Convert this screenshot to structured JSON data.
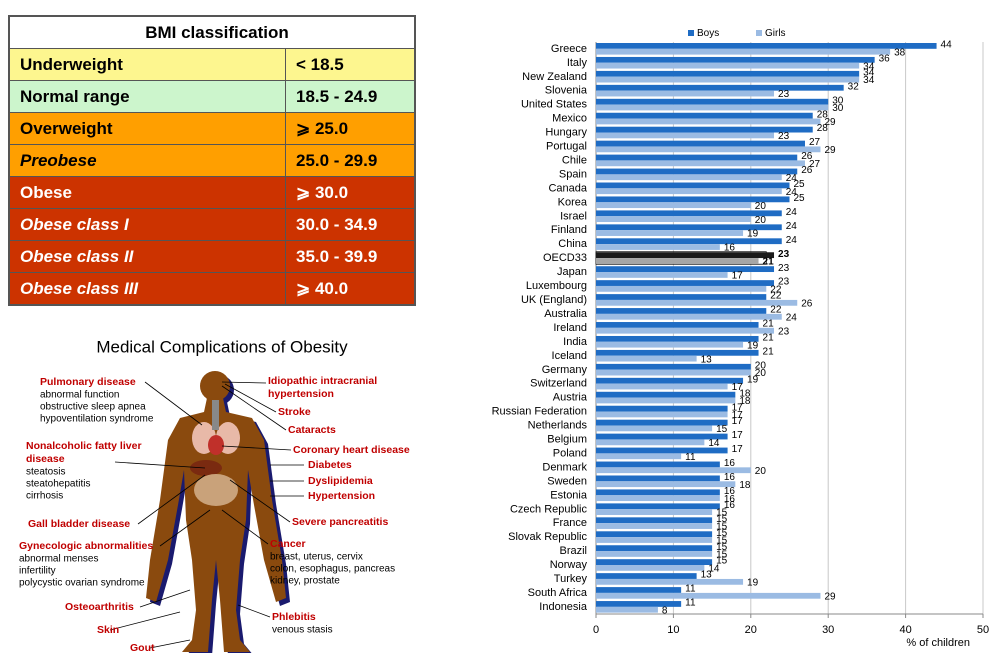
{
  "bmi_table": {
    "title": "BMI classification",
    "rows": [
      [
        "Underweight",
        "< 18.5"
      ],
      [
        "Normal range",
        "18.5 - 24.9"
      ],
      [
        "Overweight",
        "⩾ 25.0"
      ],
      [
        "Preobese",
        "25.0 - 29.9"
      ],
      [
        "Obese",
        "⩾ 30.0"
      ],
      [
        "Obese class I",
        "30.0 - 34.9"
      ],
      [
        "Obese class II",
        "35.0 - 39.9"
      ],
      [
        "Obese class III",
        "⩾ 40.0"
      ]
    ]
  },
  "complications": {
    "title": "Medical Complications of Obesity",
    "items": [
      {
        "label": [
          "Pulmonary disease"
        ],
        "details": [
          "abnormal function",
          "obstructive sleep apnea",
          "hypoventilation syndrome"
        ]
      },
      {
        "label": [
          "Nonalcoholic fatty liver",
          "disease"
        ],
        "details": [
          "steatosis",
          "steatohepatitis",
          "cirrhosis"
        ]
      },
      {
        "label": [
          "Gall bladder disease"
        ],
        "details": []
      },
      {
        "label": [
          "Gynecologic abnormalities"
        ],
        "details": [
          "abnormal menses",
          "infertility",
          "polycystic ovarian syndrome"
        ]
      },
      {
        "label": [
          "Osteoarthritis"
        ],
        "details": []
      },
      {
        "label": [
          "Skin"
        ],
        "details": []
      },
      {
        "label": [
          "Gout"
        ],
        "details": []
      },
      {
        "label": [
          "Idiopathic intracranial",
          "hypertension"
        ],
        "details": []
      },
      {
        "label": [
          "Stroke"
        ],
        "details": []
      },
      {
        "label": [
          "Cataracts"
        ],
        "details": []
      },
      {
        "label": [
          "Coronary heart disease"
        ],
        "details": []
      },
      {
        "label": [
          "Diabetes"
        ],
        "details": []
      },
      {
        "label": [
          "Dyslipidemia"
        ],
        "details": []
      },
      {
        "label": [
          "Hypertension"
        ],
        "details": []
      },
      {
        "label": [
          "Severe pancreatitis"
        ],
        "details": []
      },
      {
        "label": [
          "Cancer"
        ],
        "details": [
          "breast, uterus, cervix",
          "colon, esophagus, pancreas",
          "kidney, prostate"
        ]
      },
      {
        "label": [
          "Phlebitis"
        ],
        "details": [
          "venous stasis"
        ]
      }
    ]
  },
  "chart_data": {
    "type": "hbar",
    "x_label": "% of children",
    "categories": [
      "Greece",
      "Italy",
      "New Zealand",
      "Slovenia",
      "United States",
      "Mexico",
      "Hungary",
      "Portugal",
      "Chile",
      "Spain",
      "Canada",
      "Korea",
      "Israel",
      "Finland",
      "China",
      "OECD33",
      "Japan",
      "Luxembourg",
      "UK (England)",
      "Australia",
      "Ireland",
      "India",
      "Iceland",
      "Germany",
      "Switzerland",
      "Austria",
      "Russian Federation",
      "Netherlands",
      "Belgium",
      "Poland",
      "Denmark",
      "Sweden",
      "Estonia",
      "Czech Republic",
      "France",
      "Slovak Republic",
      "Brazil",
      "Norway",
      "Turkey",
      "South Africa",
      "Indonesia"
    ],
    "series": [
      {
        "name": "Boys",
        "color": "#1f6cc4",
        "highlight_color": "#1a1a1a",
        "values": [
          44,
          36,
          34,
          32,
          30,
          28,
          28,
          27,
          26,
          26,
          25,
          25,
          24,
          24,
          24,
          23,
          23,
          23,
          22,
          22,
          21,
          21,
          21,
          20,
          19,
          18,
          17,
          17,
          17,
          17,
          16,
          16,
          16,
          16,
          15,
          15,
          15,
          15,
          13,
          11,
          11
        ]
      },
      {
        "name": "Girls",
        "color": "#9bbbe3",
        "highlight_color": "#a6a6a6",
        "values": [
          38,
          34,
          34,
          23,
          30,
          29,
          23,
          29,
          27,
          24,
          24,
          20,
          20,
          19,
          16,
          21,
          17,
          22,
          26,
          24,
          23,
          19,
          13,
          20,
          17,
          18,
          17,
          15,
          14,
          11,
          20,
          18,
          16,
          15,
          15,
          15,
          15,
          14,
          19,
          29,
          8
        ]
      }
    ],
    "highlight_category": "OECD33",
    "xlim": [
      0,
      50
    ],
    "xticks": [
      0,
      10,
      20,
      30,
      40,
      50
    ],
    "grid": true,
    "legend": "top"
  }
}
